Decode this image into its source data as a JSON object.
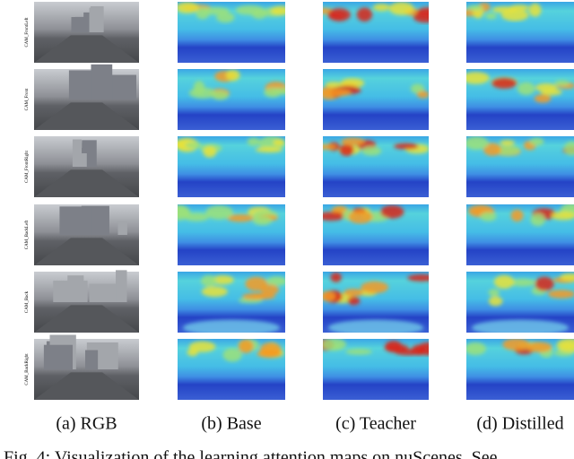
{
  "row_labels": [
    "CAM_FrontLeft",
    "CAM_Front",
    "CAM_FrontRight",
    "CAM_BackLeft",
    "CAM_Back",
    "CAM_BackRight"
  ],
  "column_captions": [
    "(a) RGB",
    "(b) Base",
    "(c) Teacher",
    "(d) Distilled"
  ],
  "caption": "Fig. 4: Visualization of the learning attention maps on nuScenes. See"
}
